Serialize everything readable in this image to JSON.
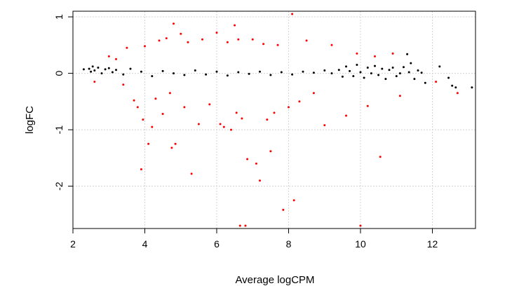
{
  "chart_data": {
    "type": "scatter",
    "title": "",
    "xlabel": "Average logCPM",
    "ylabel": "logFC",
    "xlim": [
      2.0,
      13.2
    ],
    "ylim": [
      -2.75,
      1.1
    ],
    "x_ticks": [
      2,
      4,
      6,
      8,
      10,
      12
    ],
    "y_ticks": [
      1,
      0,
      -1,
      -2
    ],
    "x_tick_labels": [
      "2",
      "4",
      "6",
      "8",
      "10",
      "12"
    ],
    "y_tick_labels": [
      "1",
      "0",
      "-1",
      "-2"
    ],
    "grid": true,
    "legend": "none",
    "series": [
      {
        "color": "#000000",
        "points": [
          [
            2.3,
            0.07
          ],
          [
            2.45,
            0.08
          ],
          [
            2.5,
            0.03
          ],
          [
            2.55,
            0.12
          ],
          [
            2.6,
            0.05
          ],
          [
            2.7,
            0.1
          ],
          [
            2.8,
            0.0
          ],
          [
            2.9,
            0.07
          ],
          [
            3.0,
            0.09
          ],
          [
            3.1,
            0.02
          ],
          [
            3.2,
            0.06
          ],
          [
            3.4,
            -0.02
          ],
          [
            3.6,
            0.08
          ],
          [
            3.9,
            0.03
          ],
          [
            4.2,
            -0.05
          ],
          [
            4.5,
            0.04
          ],
          [
            4.8,
            0.0
          ],
          [
            5.1,
            -0.03
          ],
          [
            5.4,
            0.05
          ],
          [
            5.7,
            -0.02
          ],
          [
            6.0,
            0.03
          ],
          [
            6.3,
            -0.04
          ],
          [
            6.6,
            0.02
          ],
          [
            6.9,
            -0.01
          ],
          [
            7.2,
            0.03
          ],
          [
            7.5,
            -0.03
          ],
          [
            7.8,
            0.02
          ],
          [
            8.1,
            -0.02
          ],
          [
            8.4,
            0.03
          ],
          [
            8.7,
            0.01
          ],
          [
            9.0,
            0.05
          ],
          [
            9.2,
            0.0
          ],
          [
            9.4,
            0.06
          ],
          [
            9.5,
            -0.06
          ],
          [
            9.6,
            0.12
          ],
          [
            9.7,
            0.04
          ],
          [
            9.8,
            -0.05
          ],
          [
            9.9,
            0.15
          ],
          [
            10.0,
            0.02
          ],
          [
            10.1,
            -0.08
          ],
          [
            10.2,
            0.1
          ],
          [
            10.3,
            0.0
          ],
          [
            10.4,
            0.13
          ],
          [
            10.5,
            -0.03
          ],
          [
            10.6,
            0.08
          ],
          [
            10.7,
            -0.1
          ],
          [
            10.8,
            0.06
          ],
          [
            10.9,
            0.1
          ],
          [
            11.0,
            -0.05
          ],
          [
            11.1,
            0.0
          ],
          [
            11.2,
            0.11
          ],
          [
            11.3,
            0.34
          ],
          [
            11.35,
            0.02
          ],
          [
            11.4,
            0.18
          ],
          [
            11.5,
            -0.1
          ],
          [
            11.6,
            0.05
          ],
          [
            11.7,
            0.01
          ],
          [
            11.8,
            -0.17
          ],
          [
            12.2,
            0.12
          ],
          [
            12.45,
            -0.08
          ],
          [
            12.55,
            -0.22
          ],
          [
            12.65,
            -0.25
          ],
          [
            13.1,
            -0.25
          ]
        ]
      },
      {
        "color": "#ff0000",
        "points": [
          [
            2.6,
            -0.15
          ],
          [
            3.0,
            0.3
          ],
          [
            3.2,
            0.25
          ],
          [
            3.4,
            -0.2
          ],
          [
            3.5,
            0.45
          ],
          [
            3.7,
            -0.48
          ],
          [
            3.8,
            -0.6
          ],
          [
            3.9,
            -1.7
          ],
          [
            3.95,
            -0.82
          ],
          [
            4.0,
            0.48
          ],
          [
            4.1,
            -1.25
          ],
          [
            4.2,
            -0.95
          ],
          [
            4.3,
            -0.45
          ],
          [
            4.4,
            0.58
          ],
          [
            4.5,
            -0.72
          ],
          [
            4.6,
            0.62
          ],
          [
            4.7,
            -0.35
          ],
          [
            4.75,
            -1.32
          ],
          [
            4.8,
            0.88
          ],
          [
            4.85,
            -1.25
          ],
          [
            5.0,
            0.7
          ],
          [
            5.1,
            -0.6
          ],
          [
            5.2,
            0.55
          ],
          [
            5.3,
            -1.78
          ],
          [
            5.5,
            -0.9
          ],
          [
            5.6,
            0.6
          ],
          [
            5.8,
            -0.55
          ],
          [
            6.0,
            0.72
          ],
          [
            6.1,
            -0.9
          ],
          [
            6.2,
            -0.95
          ],
          [
            6.3,
            0.55
          ],
          [
            6.4,
            -1.0
          ],
          [
            6.5,
            0.85
          ],
          [
            6.55,
            -0.7
          ],
          [
            6.6,
            0.6
          ],
          [
            6.65,
            -2.7
          ],
          [
            6.7,
            -0.8
          ],
          [
            6.8,
            -2.7
          ],
          [
            6.85,
            -1.52
          ],
          [
            7.0,
            0.6
          ],
          [
            7.1,
            -1.6
          ],
          [
            7.2,
            -1.9
          ],
          [
            7.3,
            0.52
          ],
          [
            7.4,
            -0.82
          ],
          [
            7.5,
            -1.38
          ],
          [
            7.6,
            -0.7
          ],
          [
            7.7,
            0.5
          ],
          [
            7.85,
            -2.42
          ],
          [
            8.0,
            -0.6
          ],
          [
            8.1,
            1.05
          ],
          [
            8.15,
            -2.25
          ],
          [
            8.3,
            -0.5
          ],
          [
            8.5,
            0.58
          ],
          [
            8.7,
            -0.35
          ],
          [
            9.0,
            -0.92
          ],
          [
            9.2,
            0.5
          ],
          [
            9.6,
            -0.75
          ],
          [
            9.9,
            0.35
          ],
          [
            10.0,
            -2.7
          ],
          [
            10.2,
            -0.58
          ],
          [
            10.4,
            0.3
          ],
          [
            10.55,
            -1.48
          ],
          [
            10.9,
            0.35
          ],
          [
            11.1,
            -0.4
          ],
          [
            12.1,
            -0.15
          ],
          [
            12.7,
            -0.35
          ]
        ]
      }
    ]
  }
}
